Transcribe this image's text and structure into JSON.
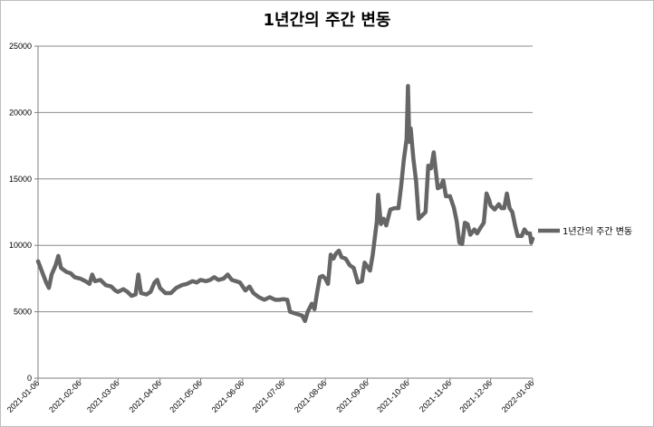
{
  "chart_data": {
    "type": "line",
    "title": "1년간의 주간 변동",
    "xlabel": "",
    "ylabel": "",
    "ylim": [
      0,
      25000
    ],
    "y_ticks": [
      0,
      5000,
      10000,
      15000,
      20000,
      25000
    ],
    "y_tick_labels": [
      "0",
      "5000",
      "10000",
      "15000",
      "20000",
      "25000"
    ],
    "x_range": [
      "2021-01-06",
      "2022-01-06"
    ],
    "x_tick_labels": [
      "2021-01-06",
      "2021-02-06",
      "2021-03-06",
      "2021-04-06",
      "2021-05-06",
      "2021-06-06",
      "2021-07-06",
      "2021-08-06",
      "2021-09-06",
      "2021-10-06",
      "2021-11-06",
      "2021-12-06",
      "2022-01-06"
    ],
    "grid": "horizontal",
    "legend_position": "right",
    "line_color": "#666666",
    "series": [
      {
        "name": "1년간의 주간 변동",
        "points": [
          [
            "2021-01-06",
            8800
          ],
          [
            "2021-01-09",
            8000
          ],
          [
            "2021-01-12",
            7200
          ],
          [
            "2021-01-14",
            6800
          ],
          [
            "2021-01-16",
            7800
          ],
          [
            "2021-01-19",
            8500
          ],
          [
            "2021-01-21",
            9200
          ],
          [
            "2021-01-23",
            8300
          ],
          [
            "2021-01-27",
            8000
          ],
          [
            "2021-01-30",
            7900
          ],
          [
            "2021-02-02",
            7600
          ],
          [
            "2021-02-06",
            7500
          ],
          [
            "2021-02-10",
            7300
          ],
          [
            "2021-02-13",
            7100
          ],
          [
            "2021-02-15",
            7800
          ],
          [
            "2021-02-17",
            7300
          ],
          [
            "2021-02-21",
            7400
          ],
          [
            "2021-02-25",
            7000
          ],
          [
            "2021-03-01",
            6900
          ],
          [
            "2021-03-04",
            6600
          ],
          [
            "2021-03-06",
            6500
          ],
          [
            "2021-03-10",
            6700
          ],
          [
            "2021-03-13",
            6500
          ],
          [
            "2021-03-16",
            6200
          ],
          [
            "2021-03-19",
            6300
          ],
          [
            "2021-03-21",
            7800
          ],
          [
            "2021-03-23",
            6400
          ],
          [
            "2021-03-27",
            6300
          ],
          [
            "2021-03-30",
            6500
          ],
          [
            "2021-04-02",
            7200
          ],
          [
            "2021-04-04",
            7400
          ],
          [
            "2021-04-06",
            6800
          ],
          [
            "2021-04-10",
            6400
          ],
          [
            "2021-04-14",
            6400
          ],
          [
            "2021-04-18",
            6800
          ],
          [
            "2021-04-22",
            7000
          ],
          [
            "2021-04-26",
            7100
          ],
          [
            "2021-04-30",
            7300
          ],
          [
            "2021-05-03",
            7200
          ],
          [
            "2021-05-06",
            7400
          ],
          [
            "2021-05-10",
            7300
          ],
          [
            "2021-05-13",
            7400
          ],
          [
            "2021-05-16",
            7600
          ],
          [
            "2021-05-19",
            7400
          ],
          [
            "2021-05-23",
            7500
          ],
          [
            "2021-05-26",
            7800
          ],
          [
            "2021-05-29",
            7400
          ],
          [
            "2021-06-01",
            7300
          ],
          [
            "2021-06-04",
            7200
          ],
          [
            "2021-06-06",
            6900
          ],
          [
            "2021-06-08",
            6600
          ],
          [
            "2021-06-11",
            6900
          ],
          [
            "2021-06-14",
            6400
          ],
          [
            "2021-06-18",
            6100
          ],
          [
            "2021-06-22",
            5900
          ],
          [
            "2021-06-26",
            6100
          ],
          [
            "2021-06-30",
            5900
          ],
          [
            "2021-07-03",
            5900
          ],
          [
            "2021-07-06",
            5950
          ],
          [
            "2021-07-09",
            5900
          ],
          [
            "2021-07-11",
            5000
          ],
          [
            "2021-07-14",
            4900
          ],
          [
            "2021-07-17",
            4800
          ],
          [
            "2021-07-20",
            4700
          ],
          [
            "2021-07-22",
            4300
          ],
          [
            "2021-07-24",
            5000
          ],
          [
            "2021-07-27",
            5600
          ],
          [
            "2021-07-29",
            5200
          ],
          [
            "2021-07-31",
            6500
          ],
          [
            "2021-08-02",
            7600
          ],
          [
            "2021-08-04",
            7700
          ],
          [
            "2021-08-06",
            7500
          ],
          [
            "2021-08-08",
            7100
          ],
          [
            "2021-08-10",
            9300
          ],
          [
            "2021-08-12",
            9000
          ],
          [
            "2021-08-14",
            9400
          ],
          [
            "2021-08-16",
            9600
          ],
          [
            "2021-08-18",
            9100
          ],
          [
            "2021-08-21",
            9000
          ],
          [
            "2021-08-24",
            8500
          ],
          [
            "2021-08-27",
            8300
          ],
          [
            "2021-08-30",
            7200
          ],
          [
            "2021-09-02",
            7300
          ],
          [
            "2021-09-04",
            8700
          ],
          [
            "2021-09-06",
            8400
          ],
          [
            "2021-09-08",
            8100
          ],
          [
            "2021-09-10",
            9300
          ],
          [
            "2021-09-13",
            11800
          ],
          [
            "2021-09-14",
            13800
          ],
          [
            "2021-09-16",
            11600
          ],
          [
            "2021-09-18",
            12000
          ],
          [
            "2021-09-20",
            11500
          ],
          [
            "2021-09-23",
            12700
          ],
          [
            "2021-09-26",
            12800
          ],
          [
            "2021-09-29",
            12800
          ],
          [
            "2021-10-01",
            14500
          ],
          [
            "2021-10-03",
            16500
          ],
          [
            "2021-10-05",
            18000
          ],
          [
            "2021-10-06",
            22000
          ],
          [
            "2021-10-07",
            17800
          ],
          [
            "2021-10-08",
            18800
          ],
          [
            "2021-10-10",
            16500
          ],
          [
            "2021-10-12",
            14800
          ],
          [
            "2021-10-14",
            12000
          ],
          [
            "2021-10-17",
            12300
          ],
          [
            "2021-10-19",
            12500
          ],
          [
            "2021-10-21",
            16000
          ],
          [
            "2021-10-23",
            15800
          ],
          [
            "2021-10-25",
            17000
          ],
          [
            "2021-10-28",
            14300
          ],
          [
            "2021-10-30",
            14400
          ],
          [
            "2021-11-01",
            14900
          ],
          [
            "2021-11-03",
            13700
          ],
          [
            "2021-11-06",
            13700
          ],
          [
            "2021-11-09",
            12800
          ],
          [
            "2021-11-11",
            11800
          ],
          [
            "2021-11-13",
            10200
          ],
          [
            "2021-11-15",
            10100
          ],
          [
            "2021-11-17",
            11700
          ],
          [
            "2021-11-19",
            11600
          ],
          [
            "2021-11-21",
            10800
          ],
          [
            "2021-11-24",
            11200
          ],
          [
            "2021-11-26",
            10900
          ],
          [
            "2021-11-29",
            11400
          ],
          [
            "2021-12-01",
            11700
          ],
          [
            "2021-12-03",
            13900
          ],
          [
            "2021-12-05",
            13400
          ],
          [
            "2021-12-06",
            13000
          ],
          [
            "2021-12-09",
            12700
          ],
          [
            "2021-12-12",
            13100
          ],
          [
            "2021-12-14",
            12800
          ],
          [
            "2021-12-16",
            12800
          ],
          [
            "2021-12-18",
            13900
          ],
          [
            "2021-12-20",
            12800
          ],
          [
            "2021-12-22",
            12500
          ],
          [
            "2021-12-24",
            11500
          ],
          [
            "2021-12-26",
            10700
          ],
          [
            "2021-12-29",
            10700
          ],
          [
            "2021-12-31",
            11200
          ],
          [
            "2022-01-02",
            10900
          ],
          [
            "2022-01-04",
            10900
          ],
          [
            "2022-01-05",
            10200
          ],
          [
            "2022-01-06",
            10500
          ]
        ]
      }
    ]
  }
}
